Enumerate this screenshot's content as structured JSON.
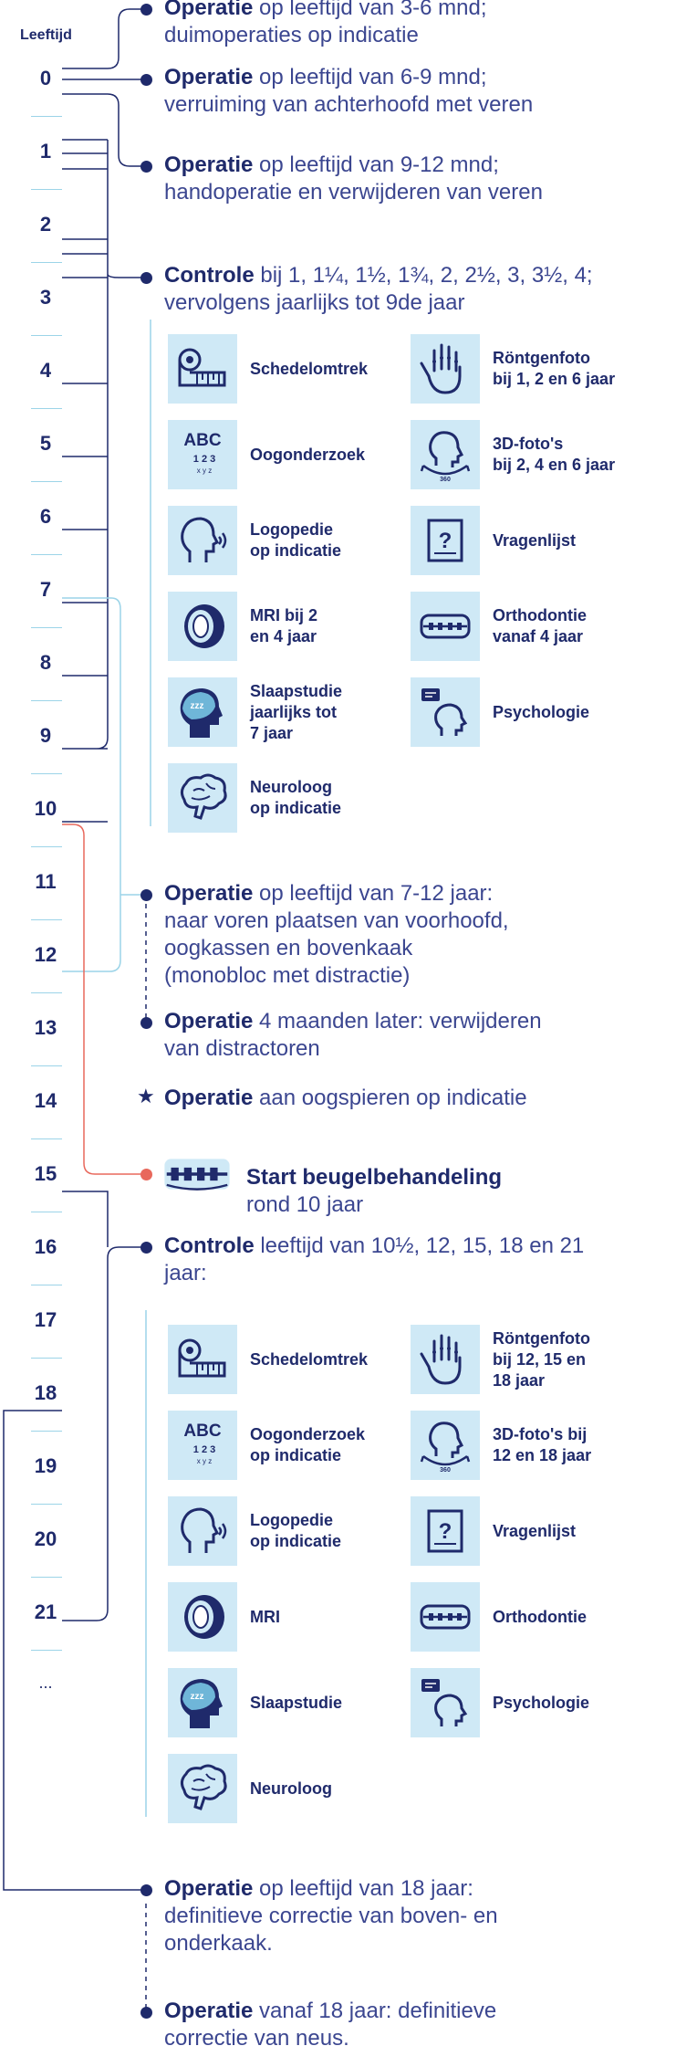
{
  "age_header": "Leeftijd",
  "ages": [
    "0",
    "1",
    "2",
    "3",
    "4",
    "5",
    "6",
    "7",
    "8",
    "9",
    "10",
    "11",
    "12",
    "13",
    "14",
    "15",
    "16",
    "17",
    "18",
    "19",
    "20",
    "21",
    "..."
  ],
  "events": [
    {
      "bold": "Operatie",
      "l1": " op leeftijd van 3-6 mnd;",
      "l2": "duimoperaties op indicatie"
    },
    {
      "bold": "Operatie",
      "l1": " op leeftijd van 6-9 mnd;",
      "l2": "verruiming van achterhoofd met veren"
    },
    {
      "bold": "Operatie",
      "l1": " op leeftijd van 9-12 mnd;",
      "l2": "handoperatie en verwijderen van veren"
    },
    {
      "bold": "Controle",
      "l1": " bij 1,  1¼, 1½, 1¾, 2, 2½, 3, 3½, 4;",
      "l2": "vervolgens jaarlijks tot 9de jaar"
    },
    {
      "bold": "Operatie",
      "l1": " op leeftijd van 7-12 jaar:",
      "l2": "naar voren plaatsen van voorhoofd,",
      "l3": "oogkassen en bovenkaak",
      "l4": "(monobloc met distractie)"
    },
    {
      "bold": "Operatie",
      "l1": " 4 maanden later: verwijderen",
      "l2": "van distractoren"
    },
    {
      "bold": "Operatie",
      "l1": " aan oogspieren op indicatie"
    },
    {
      "bold": "Controle",
      "l1": " leeftijd van 10½, 12, 15, 18 en 21",
      "l2": "jaar:"
    },
    {
      "bold": "Operatie",
      "l1": " op leeftijd van 18 jaar:",
      "l2": "definitieve correctie van boven- en",
      "l3": "onderkaak."
    },
    {
      "bold": "Operatie",
      "l1": " vanaf 18 jaar: definitieve",
      "l2": "correctie van neus."
    }
  ],
  "braces": {
    "title": "Start beugelbehandeling",
    "sub": "rond 10 jaar"
  },
  "controle1_items": [
    {
      "icon": "tape-measure-icon",
      "l1": "Schedelomtrek"
    },
    {
      "icon": "xray-hand-icon",
      "l1": "Röntgenfoto",
      "l2": "bij 1, 2 en 6 jaar"
    },
    {
      "icon": "eye-chart-icon",
      "l1": "Oogonderzoek"
    },
    {
      "icon": "head-360-icon",
      "l1": "3D-foto's",
      "l2": "bij 2, 4 en 6 jaar"
    },
    {
      "icon": "speech-head-icon",
      "l1": "Logopedie",
      "l2": "op indicatie"
    },
    {
      "icon": "questionnaire-icon",
      "l1": "Vragenlijst"
    },
    {
      "icon": "mri-icon",
      "l1": "MRI bij 2",
      "l2": "en 4 jaar"
    },
    {
      "icon": "teeth-braces-icon",
      "l1": "Orthodontie",
      "l2": "vanaf 4 jaar"
    },
    {
      "icon": "sleep-head-icon",
      "l1": "Slaapstudie",
      "l2": "jaarlijks tot",
      "l3": "7 jaar"
    },
    {
      "icon": "psychology-head-icon",
      "l1": "Psychologie"
    },
    {
      "icon": "brain-icon",
      "l1": "Neuroloog",
      "l2": "op indicatie"
    }
  ],
  "controle2_items": [
    {
      "icon": "tape-measure-icon",
      "l1": "Schedelomtrek"
    },
    {
      "icon": "xray-hand-icon",
      "l1": "Röntgenfoto",
      "l2": "bij 12, 15 en",
      "l3": "18 jaar"
    },
    {
      "icon": "eye-chart-icon",
      "l1": "Oogonderzoek",
      "l2": "op indicatie"
    },
    {
      "icon": "head-360-icon",
      "l1": "3D-foto's bij",
      "l2": "12 en 18 jaar"
    },
    {
      "icon": "speech-head-icon",
      "l1": "Logopedie",
      "l2": "op indicatie"
    },
    {
      "icon": "questionnaire-icon",
      "l1": "Vragenlijst"
    },
    {
      "icon": "mri-icon",
      "l1": "MRI"
    },
    {
      "icon": "teeth-braces-icon",
      "l1": "Orthodontie"
    },
    {
      "icon": "sleep-head-icon",
      "l1": "Slaapstudie"
    },
    {
      "icon": "psychology-head-icon",
      "l1": "Psychologie"
    },
    {
      "icon": "brain-icon",
      "l1": "Neuroloog"
    }
  ],
  "eye_chart": {
    "abc": "ABC",
    "nums": "1 2 3",
    "xyz": "x y z"
  },
  "head360": "360",
  "colors": {
    "navy": "#1f2a6b",
    "light_blue": "#9cd4e8",
    "tile": "#cfe9f6",
    "red": "#e8685c"
  }
}
